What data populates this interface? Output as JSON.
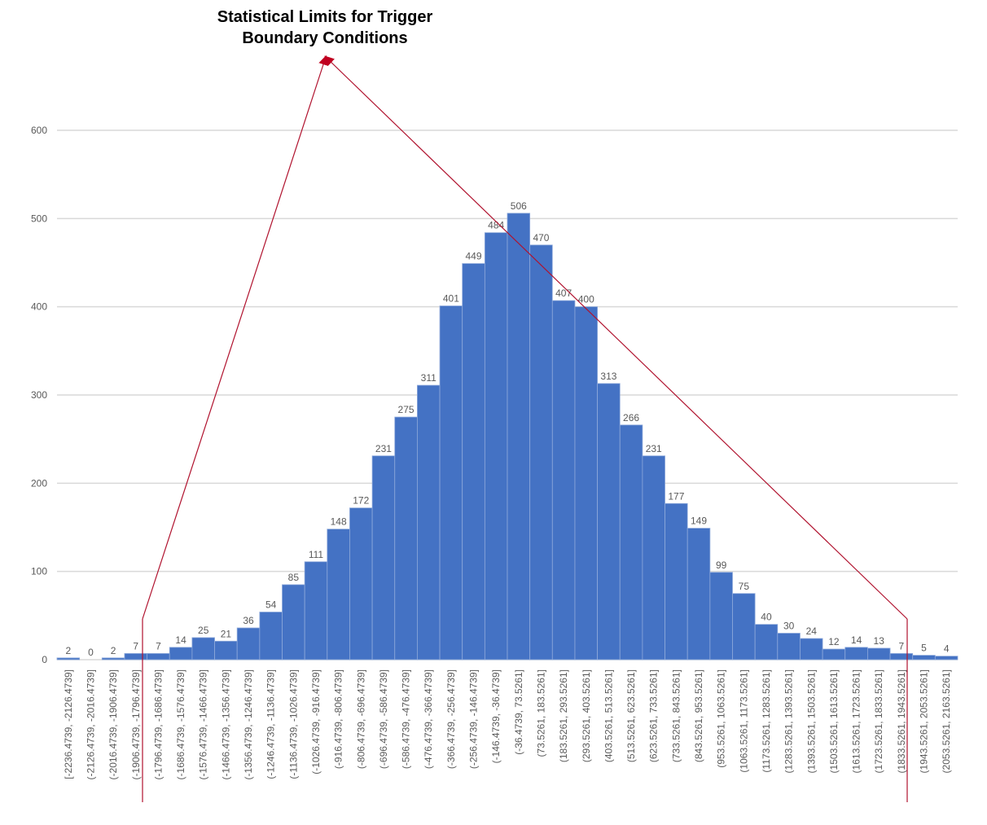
{
  "chart_data": {
    "type": "bar",
    "annotation": "Statistical Limits for Trigger Boundary Conditions",
    "categories": [
      "[-2236.4739, -2126.4739]",
      "(-2126.4739, -2016.4739]",
      "(-2016.4739, -1906.4739]",
      "(-1906.4739, -1796.4739]",
      "(-1796.4739, -1686.4739]",
      "(-1686.4739, -1576.4739]",
      "(-1576.4739, -1466.4739]",
      "(-1466.4739, -1356.4739]",
      "(-1356.4739, -1246.4739]",
      "(-1246.4739, -1136.4739]",
      "(-1136.4739, -1026.4739]",
      "(-1026.4739, -916.4739]",
      "(-916.4739, -806.4739]",
      "(-806.4739, -696.4739]",
      "(-696.4739, -586.4739]",
      "(-586.4739, -476.4739]",
      "(-476.4739, -366.4739]",
      "(-366.4739, -256.4739]",
      "(-256.4739, -146.4739]",
      "(-146.4739, -36.4739]",
      "(-36.4739, 73.5261]",
      "(73.5261, 183.5261]",
      "(183.5261, 293.5261]",
      "(293.5261, 403.5261]",
      "(403.5261, 513.5261]",
      "(513.5261, 623.5261]",
      "(623.5261, 733.5261]",
      "(733.5261, 843.5261]",
      "(843.5261, 953.5261]",
      "(953.5261, 1063.5261]",
      "(1063.5261, 1173.5261]",
      "(1173.5261, 1283.5261]",
      "(1283.5261, 1393.5261]",
      "(1393.5261, 1503.5261]",
      "(1503.5261, 1613.5261]",
      "(1613.5261, 1723.5261]",
      "(1723.5261, 1833.5261]",
      "(1833.5261, 1943.5261]",
      "(1943.5261, 2053.5261]",
      "(2053.5261, 2163.5261]"
    ],
    "values": [
      2,
      0,
      2,
      7,
      7,
      14,
      25,
      21,
      36,
      54,
      85,
      111,
      148,
      172,
      231,
      275,
      311,
      401,
      449,
      484,
      506,
      470,
      407,
      400,
      313,
      266,
      231,
      177,
      149,
      99,
      75,
      40,
      30,
      24,
      12,
      14,
      13,
      7,
      5,
      4
    ],
    "color": "#4472c4",
    "ylim": [
      0,
      600
    ],
    "yticks": [
      0,
      100,
      200,
      300,
      400,
      500,
      600
    ],
    "grid": true
  }
}
